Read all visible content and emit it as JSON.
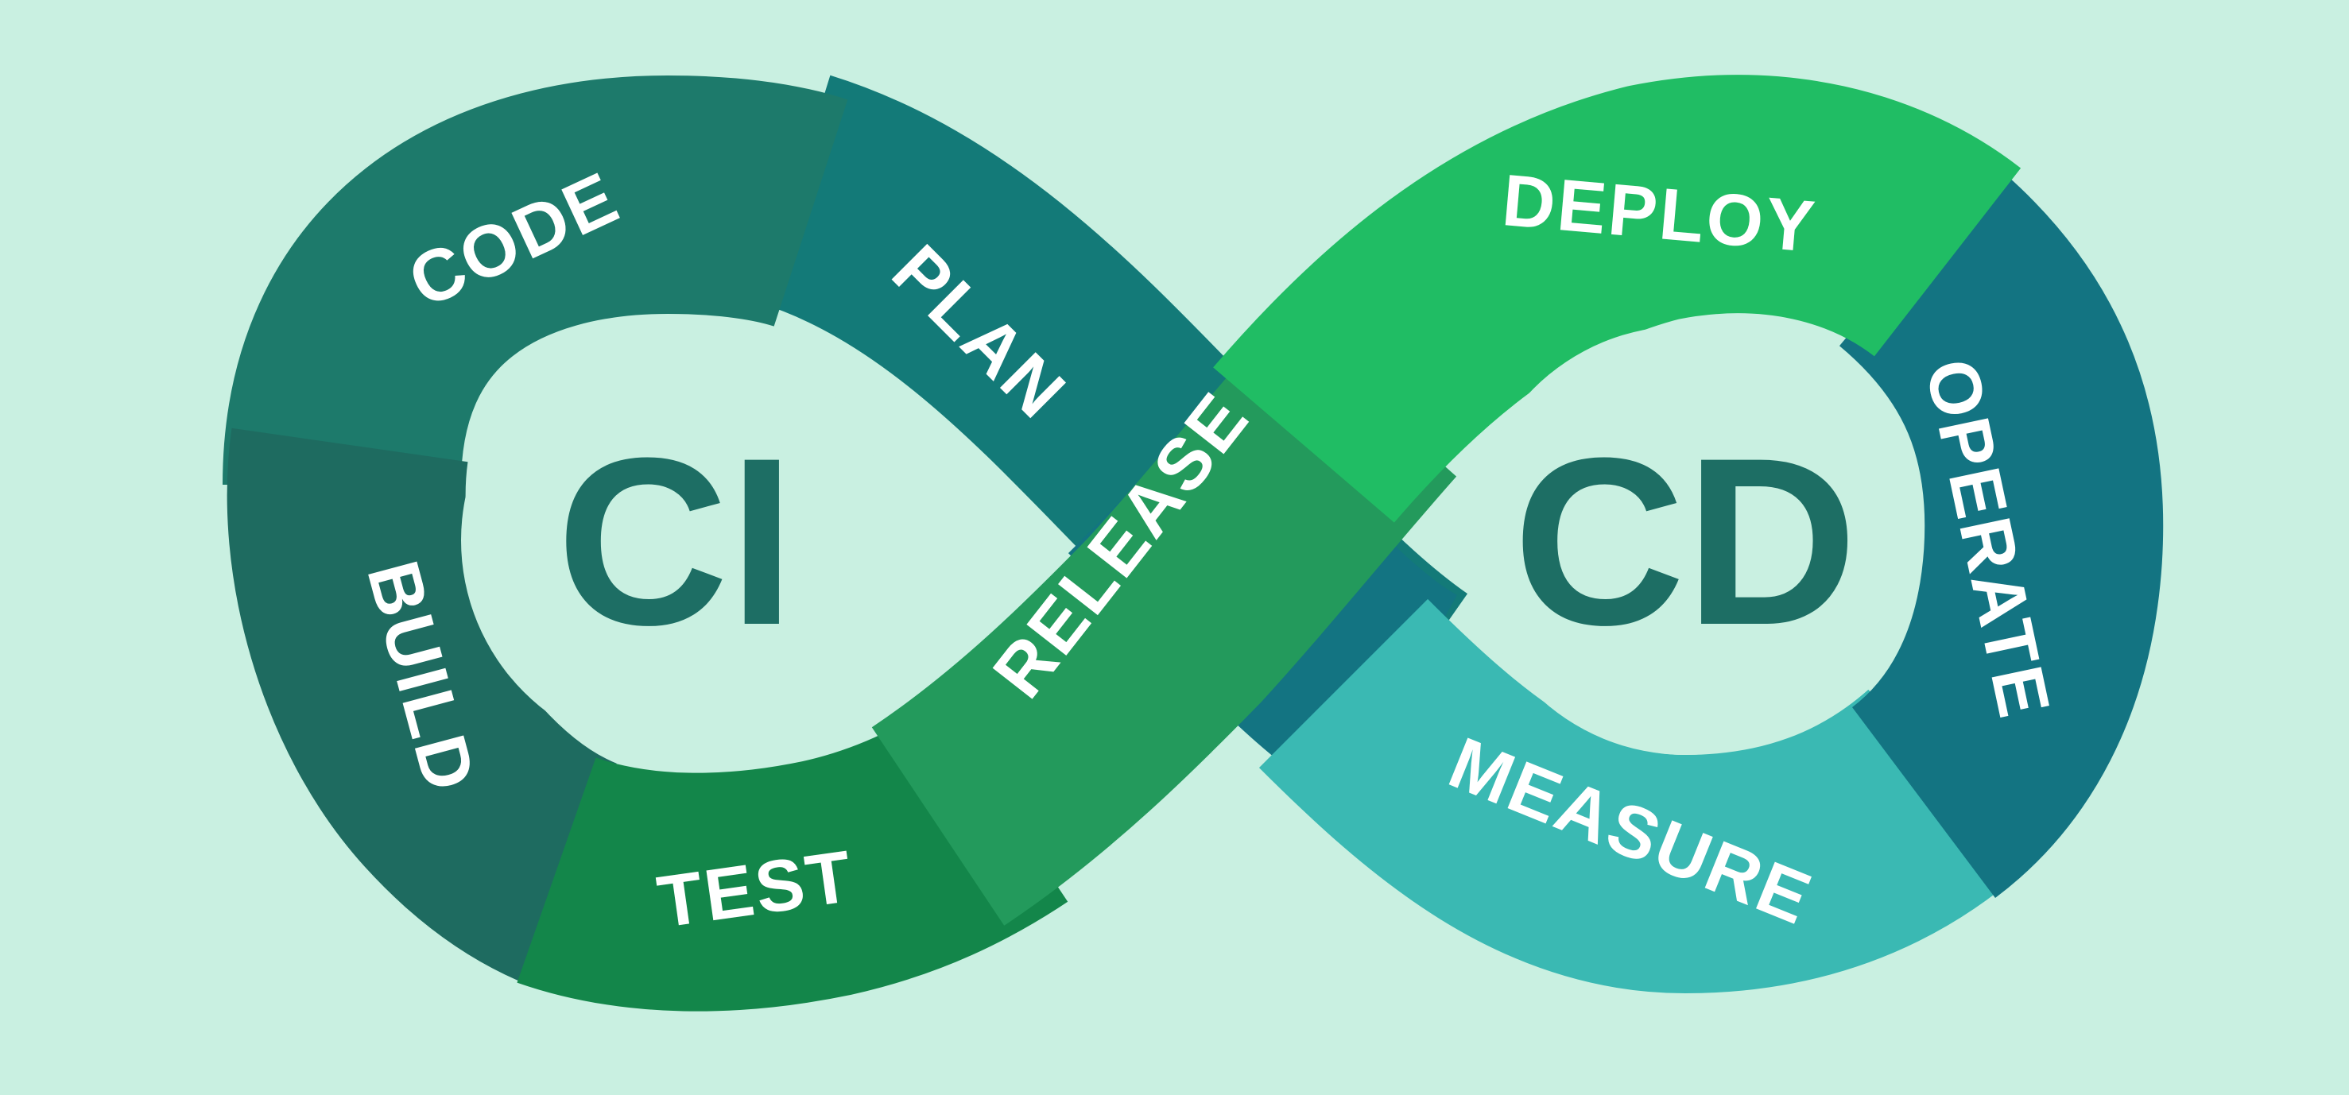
{
  "diagram": {
    "background_color": "#c9f0e1",
    "hub_text_color": "#1d6e64",
    "hubs": {
      "left": "CI",
      "right": "CD"
    },
    "stages": {
      "plan": {
        "label": "PLAN",
        "color": "#137a78"
      },
      "code": {
        "label": "CODE",
        "color": "#1d7a6b"
      },
      "build": {
        "label": "BUILD",
        "color": "#1e6b60"
      },
      "test": {
        "label": "TEST",
        "color": "#13864a"
      },
      "release": {
        "label": "RELEASE",
        "color": "#239a5c"
      },
      "deploy": {
        "label": "DEPLOY",
        "color": "#20bd64"
      },
      "operate": {
        "label": "OPERATE",
        "color": "#137482"
      },
      "measure": {
        "label": "MEASURE",
        "color": "#3ab9b3"
      }
    }
  }
}
